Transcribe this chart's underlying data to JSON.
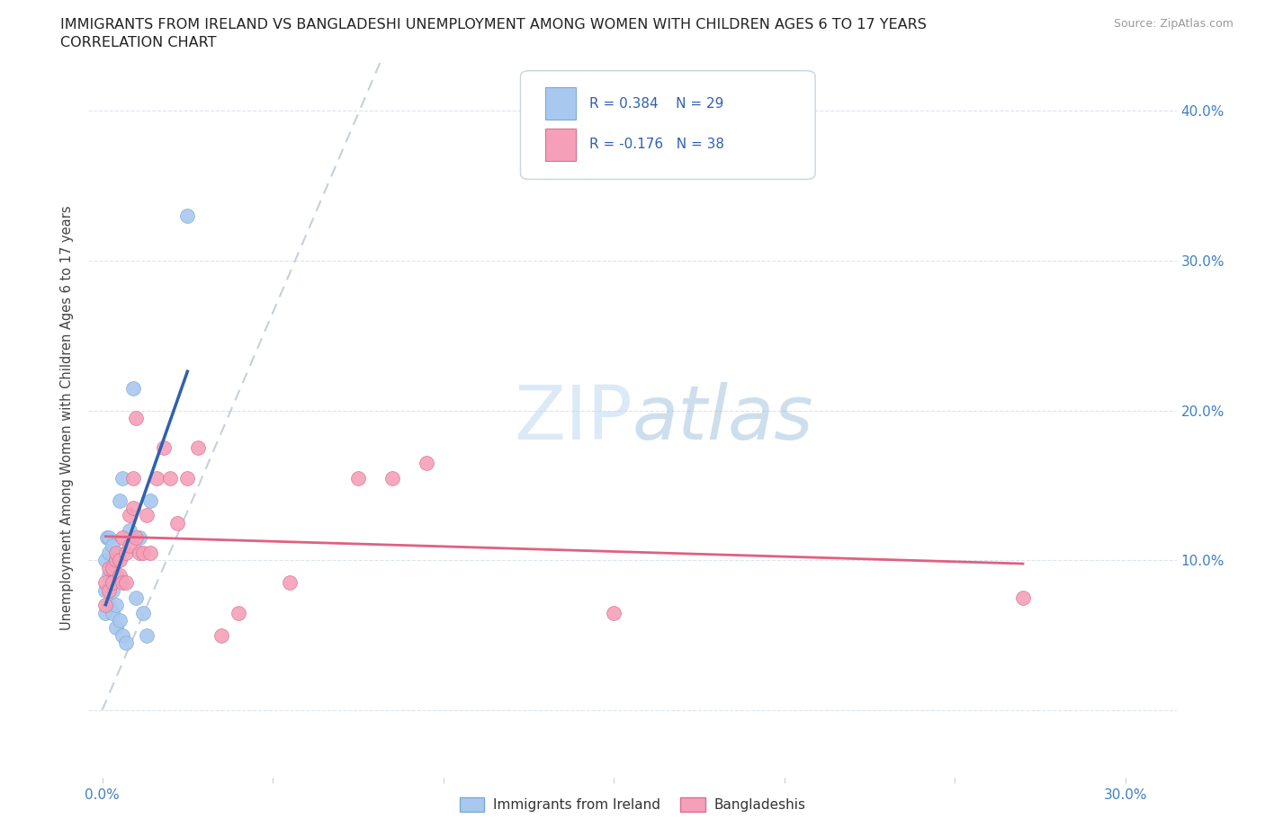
{
  "title_line1": "IMMIGRANTS FROM IRELAND VS BANGLADESHI UNEMPLOYMENT AMONG WOMEN WITH CHILDREN AGES 6 TO 17 YEARS",
  "title_line2": "CORRELATION CHART",
  "source": "Source: ZipAtlas.com",
  "ylabel": "Unemployment Among Women with Children Ages 6 to 17 years",
  "x_min": -0.004,
  "x_max": 0.315,
  "y_min": -0.045,
  "y_max": 0.435,
  "ireland_color": "#a8c8f0",
  "ireland_edge_color": "#7aaad0",
  "bangladesh_color": "#f5a0b8",
  "bangladesh_edge_color": "#d87090",
  "ireland_line_color": "#3060b0",
  "bangladesh_line_color": "#e06080",
  "dashed_line_color": "#b8c4d4",
  "background_color": "#ffffff",
  "grid_color": "#dce4f0",
  "tick_color": "#4080c0",
  "ireland_x": [
    0.001,
    0.001,
    0.001,
    0.0015,
    0.002,
    0.002,
    0.002,
    0.002,
    0.003,
    0.003,
    0.003,
    0.003,
    0.004,
    0.004,
    0.004,
    0.004,
    0.005,
    0.005,
    0.006,
    0.006,
    0.007,
    0.008,
    0.009,
    0.01,
    0.011,
    0.012,
    0.013,
    0.014,
    0.025
  ],
  "ireland_y": [
    0.065,
    0.08,
    0.1,
    0.115,
    0.07,
    0.09,
    0.105,
    0.115,
    0.065,
    0.08,
    0.095,
    0.11,
    0.055,
    0.07,
    0.09,
    0.1,
    0.06,
    0.14,
    0.05,
    0.155,
    0.045,
    0.12,
    0.215,
    0.075,
    0.115,
    0.065,
    0.05,
    0.14,
    0.33
  ],
  "bangladesh_x": [
    0.001,
    0.001,
    0.002,
    0.002,
    0.003,
    0.003,
    0.004,
    0.004,
    0.005,
    0.005,
    0.006,
    0.006,
    0.007,
    0.007,
    0.008,
    0.008,
    0.009,
    0.009,
    0.01,
    0.01,
    0.011,
    0.012,
    0.013,
    0.014,
    0.016,
    0.018,
    0.02,
    0.022,
    0.025,
    0.028,
    0.035,
    0.04,
    0.055,
    0.075,
    0.085,
    0.095,
    0.15,
    0.27
  ],
  "bangladesh_y": [
    0.07,
    0.085,
    0.08,
    0.095,
    0.085,
    0.095,
    0.1,
    0.105,
    0.09,
    0.1,
    0.085,
    0.115,
    0.085,
    0.105,
    0.11,
    0.13,
    0.135,
    0.155,
    0.115,
    0.195,
    0.105,
    0.105,
    0.13,
    0.105,
    0.155,
    0.175,
    0.155,
    0.125,
    0.155,
    0.175,
    0.05,
    0.065,
    0.085,
    0.155,
    0.155,
    0.165,
    0.065,
    0.075
  ],
  "legend_r1": "R = 0.384",
  "legend_n1": "N = 29",
  "legend_r2": "R = -0.176",
  "legend_n2": "N = 38",
  "watermark_zip": "ZIP",
  "watermark_atlas": "atlas",
  "legend_label1": "Immigrants from Ireland",
  "legend_label2": "Bangladeshis"
}
